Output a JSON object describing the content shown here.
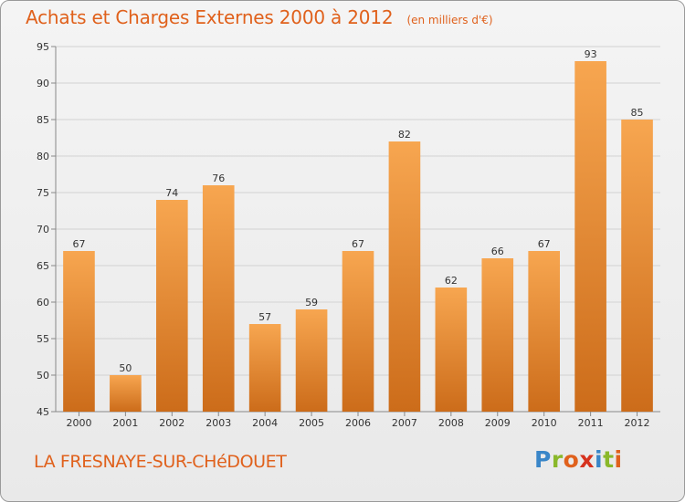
{
  "title": "Achats et Charges Externes 2000 à 2012",
  "subtitle": "(en milliers d'€)",
  "place": "LA FRESNAYE-SUR-CHéDOUET",
  "brand": {
    "letters": [
      "P",
      "r",
      "o",
      "x",
      "i",
      "t",
      "i"
    ],
    "colors": [
      "#3a86c8",
      "#8ab82a",
      "#e0611c",
      "#d6321e",
      "#3a86c8",
      "#8ab82a",
      "#e0611c"
    ]
  },
  "colors": {
    "bar_top": "#f7a650",
    "bar_bottom": "#cc6c1a",
    "accent": "#e0611c"
  },
  "chart_data": {
    "type": "bar",
    "categories": [
      "2000",
      "2001",
      "2002",
      "2003",
      "2004",
      "2005",
      "2006",
      "2007",
      "2008",
      "2009",
      "2010",
      "2011",
      "2012"
    ],
    "values": [
      67,
      50,
      74,
      76,
      57,
      59,
      67,
      82,
      62,
      66,
      67,
      93,
      85
    ],
    "ylim": [
      45,
      95
    ],
    "yticks": [
      45,
      50,
      55,
      60,
      65,
      70,
      75,
      80,
      85,
      90,
      95
    ],
    "grid": true,
    "data_labels": true
  }
}
